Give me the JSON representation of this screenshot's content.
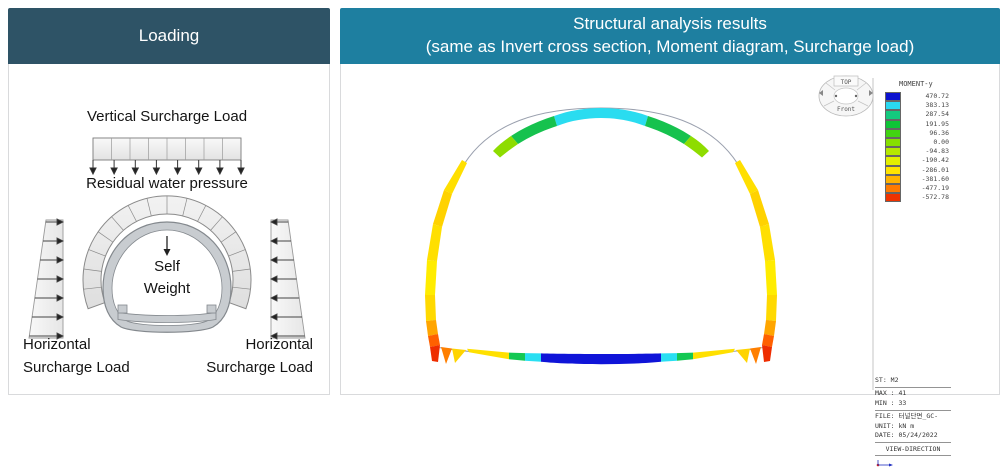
{
  "left_panel": {
    "header": "Loading",
    "vertical_load_label": "Vertical Surcharge Load",
    "water_pressure_label": "Residual water pressure",
    "self_weight_label_line1": "Self",
    "self_weight_label_line2": "Weight",
    "left_horizontal_label_line1": "Horizontal",
    "left_horizontal_label_line2": "Surcharge Load",
    "right_horizontal_label_line1": "Horizontal",
    "right_horizontal_label_line2": "Surcharge Load"
  },
  "right_panel": {
    "header_line1": "Structural analysis results",
    "header_line2": "(same as Invert cross section, Moment diagram, Surcharge load)",
    "rosette": {
      "top_label": "TOP",
      "front_label": "Front"
    },
    "legend": {
      "title": "MOMENT-y",
      "entries": [
        {
          "color": "#0d12cf",
          "value": "470.72"
        },
        {
          "color": "#29d8f0",
          "value": "383.13"
        },
        {
          "color": "#14c97e",
          "value": "287.54"
        },
        {
          "color": "#0fc437",
          "value": "191.95"
        },
        {
          "color": "#41d312",
          "value": "96.36"
        },
        {
          "color": "#86df00",
          "value": "0.00"
        },
        {
          "color": "#b5e800",
          "value": "-94.83"
        },
        {
          "color": "#e3ef00",
          "value": "-190.42"
        },
        {
          "color": "#ffe400",
          "value": "-286.01"
        },
        {
          "color": "#ffb300",
          "value": "-381.60"
        },
        {
          "color": "#ff7a00",
          "value": "-477.19"
        },
        {
          "color": "#ef3200",
          "value": "-572.78"
        }
      ]
    },
    "info_block": {
      "st": "ST: M2",
      "max": "MAX : 41",
      "min": "MIN : 33",
      "file": "FILE: 터널단면_GC-",
      "unit": "UNIT: kN m",
      "date": "DATE: 05/24/2022",
      "view_direction": "VIEW-DIRECTION"
    }
  },
  "colors": {
    "left_header_bg": "#2e5366",
    "right_header_bg": "#1e7fa0",
    "header_text": "#ffffff",
    "panel_border": "#d9dadc"
  }
}
